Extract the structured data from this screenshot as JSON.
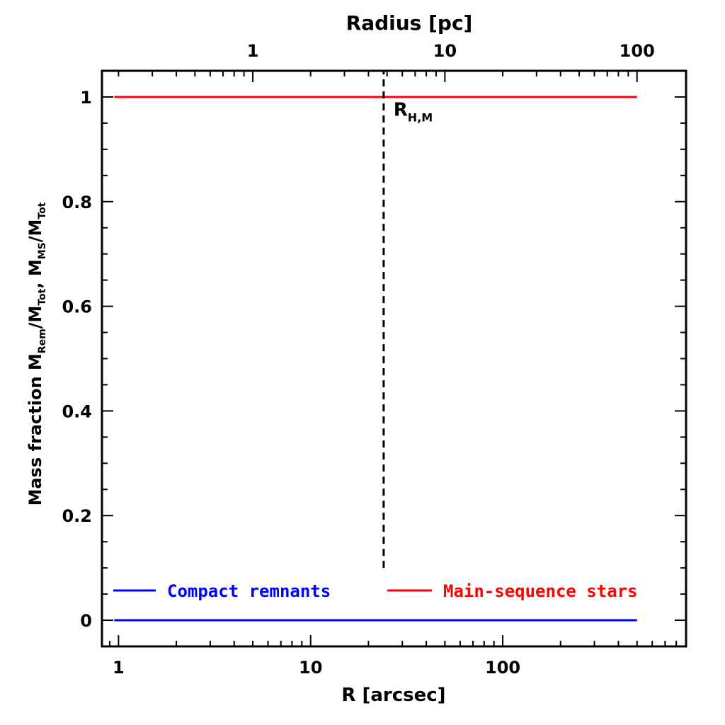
{
  "chart_data": {
    "type": "line",
    "xlabel": "R [arcsec]",
    "x2label": "Radius [pc]",
    "ylabel": "Mass fraction",
    "ylabel_math": {
      "a": "M",
      "a_sub": "Rem",
      "b": "/M",
      "b_sub": "Tot",
      "sep": ",  ",
      "c": "M",
      "c_sub": "MS",
      "d": "/M",
      "d_sub": "Tot"
    },
    "xscale": "log",
    "xlim": [
      0.82,
      900
    ],
    "ylim": [
      -0.05,
      1.05
    ],
    "x2lim": [
      0.164,
      180
    ],
    "x_major_ticks": [
      1,
      10,
      100
    ],
    "x_tick_labels": [
      "1",
      "10",
      "100"
    ],
    "x2_major_ticks": [
      1,
      10,
      100
    ],
    "x2_tick_labels": [
      "1",
      "10",
      "100"
    ],
    "y_major_ticks": [
      0,
      0.2,
      0.4,
      0.6,
      0.8,
      1
    ],
    "y_tick_labels": [
      "0",
      "0.2",
      "0.4",
      "0.6",
      "0.8",
      "1"
    ],
    "y_minor_step": 0.05,
    "grid": false,
    "series": [
      {
        "name": "Compact remnants",
        "color": "#0000ff",
        "x": [
          0.95,
          500
        ],
        "y": [
          0,
          0
        ]
      },
      {
        "name": "Main-sequence stars",
        "color": "#ff0000",
        "x": [
          0.95,
          500
        ],
        "y": [
          1,
          1
        ]
      }
    ],
    "vline": {
      "x": 24,
      "y_range": [
        0.1,
        1.05
      ],
      "style": "dashed",
      "color": "#000000"
    },
    "annotation": {
      "text": "R",
      "sub": "H,M",
      "x": 27,
      "y": 0.98
    },
    "legend": [
      {
        "label": "Compact remnants",
        "color": "#0000ff"
      },
      {
        "label": "Main-sequence stars",
        "color": "#ff0000"
      }
    ],
    "legend_position": "bottom"
  }
}
